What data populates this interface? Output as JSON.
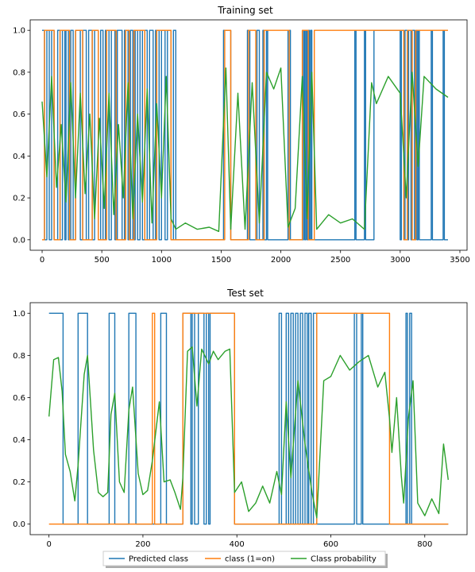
{
  "legend": {
    "entries": [
      {
        "label": "Predicted class",
        "color": "#1f77b4"
      },
      {
        "label": "class (1=on)",
        "color": "#ff7f0e"
      },
      {
        "label": "Class probability",
        "color": "#2ca02c"
      }
    ],
    "placement": "bottom-center",
    "shadow": true
  },
  "chart_data": [
    {
      "type": "line",
      "title": "Training set",
      "xlabel": "",
      "ylabel": "",
      "xlim": [
        -100,
        3560
      ],
      "ylim": [
        -0.05,
        1.05
      ],
      "xticks": [
        0,
        500,
        1000,
        1500,
        2000,
        2500,
        3000,
        3500
      ],
      "yticks": [
        0.0,
        0.2,
        0.4,
        0.6,
        0.8,
        1.0
      ],
      "grid": false,
      "series": [
        {
          "name": "Predicted class",
          "color": "#1f77b4",
          "kind": "step",
          "x": [
            0,
            20,
            40,
            60,
            80,
            100,
            130,
            150,
            170,
            190,
            200,
            220,
            240,
            260,
            280,
            320,
            340,
            370,
            390,
            420,
            440,
            470,
            490,
            510,
            530,
            560,
            580,
            610,
            630,
            670,
            690,
            720,
            740,
            760,
            780,
            800,
            820,
            840,
            860,
            880,
            900,
            930,
            950,
            980,
            1000,
            1030,
            1050,
            1080,
            1100,
            1120,
            1500,
            1520,
            1560,
            1580,
            1720,
            1740,
            1800,
            1820,
            1850,
            1860,
            1880,
            1890,
            2060,
            2080,
            2180,
            2190,
            2200,
            2210,
            2220,
            2230,
            2240,
            2250,
            2260,
            2270,
            2620,
            2630,
            2700,
            2710,
            2760,
            2780,
            3000,
            3010,
            3030,
            3040,
            3060,
            3070,
            3090,
            3100,
            3120,
            3130,
            3140,
            3150,
            3160,
            3170,
            3260,
            3270,
            3360,
            3370,
            3400
          ],
          "y": [
            1,
            0,
            1,
            0,
            1,
            0,
            1,
            0,
            1,
            0,
            1,
            0,
            1,
            0,
            1,
            0,
            1,
            0,
            1,
            0,
            1,
            0,
            1,
            0,
            1,
            0,
            1,
            0,
            1,
            0,
            1,
            0,
            1,
            0,
            1,
            0,
            1,
            0,
            1,
            0,
            1,
            0,
            1,
            0,
            1,
            0,
            1,
            0,
            1,
            0,
            0,
            1,
            1,
            0,
            1,
            0,
            1,
            0,
            1,
            0,
            1,
            0,
            1,
            0,
            0,
            1,
            0,
            1,
            0,
            1,
            0,
            1,
            0,
            0,
            1,
            0,
            1,
            0,
            0,
            1,
            0,
            1,
            0,
            1,
            0,
            1,
            0,
            1,
            0,
            1,
            0,
            1,
            0,
            0,
            1,
            0,
            1,
            0,
            0
          ]
        },
        {
          "name": "class (1=on)",
          "color": "#ff7f0e",
          "kind": "step",
          "x": [
            0,
            20,
            60,
            100,
            150,
            230,
            280,
            340,
            420,
            470,
            540,
            620,
            700,
            730,
            770,
            860,
            960,
            1000,
            1080,
            1500,
            1530,
            1580,
            1730,
            1790,
            1860,
            1880,
            2070,
            2180,
            2230,
            2280,
            2760,
            3030,
            3060,
            3100,
            3130,
            3400
          ],
          "y": [
            0,
            1,
            1,
            0,
            1,
            0,
            1,
            0,
            1,
            0,
            1,
            0,
            1,
            0,
            1,
            0,
            1,
            1,
            0,
            0,
            1,
            0,
            1,
            0,
            1,
            1,
            0,
            1,
            0,
            1,
            1,
            0,
            1,
            0,
            1,
            1
          ]
        },
        {
          "name": "Class probability",
          "color": "#2ca02c",
          "kind": "line",
          "x": [
            0,
            40,
            80,
            120,
            160,
            200,
            240,
            280,
            320,
            360,
            400,
            440,
            480,
            520,
            560,
            600,
            640,
            680,
            720,
            760,
            800,
            840,
            880,
            920,
            960,
            1000,
            1040,
            1080,
            1120,
            1200,
            1300,
            1400,
            1480,
            1540,
            1580,
            1640,
            1700,
            1760,
            1820,
            1880,
            1940,
            2000,
            2060,
            2120,
            2180,
            2220,
            2260,
            2300,
            2400,
            2500,
            2600,
            2700,
            2760,
            2800,
            2900,
            3000,
            3050,
            3100,
            3150,
            3200,
            3300,
            3400
          ],
          "y": [
            0.66,
            0.3,
            0.78,
            0.25,
            0.55,
            0.18,
            0.75,
            0.2,
            0.7,
            0.22,
            0.6,
            0.1,
            0.58,
            0.15,
            0.7,
            0.12,
            0.55,
            0.2,
            0.75,
            0.1,
            0.6,
            0.18,
            0.72,
            0.08,
            0.65,
            0.2,
            0.78,
            0.1,
            0.05,
            0.08,
            0.05,
            0.06,
            0.04,
            0.82,
            0.05,
            0.7,
            0.05,
            0.75,
            0.08,
            0.8,
            0.72,
            0.82,
            0.06,
            0.15,
            0.78,
            0.1,
            0.8,
            0.05,
            0.12,
            0.08,
            0.1,
            0.05,
            0.75,
            0.65,
            0.78,
            0.7,
            0.2,
            0.8,
            0.35,
            0.78,
            0.72,
            0.68
          ]
        }
      ]
    },
    {
      "type": "line",
      "title": "Test set",
      "xlabel": "",
      "ylabel": "",
      "xlim": [
        -40,
        890
      ],
      "ylim": [
        -0.05,
        1.05
      ],
      "xticks": [
        0,
        200,
        400,
        600,
        800
      ],
      "yticks": [
        0.0,
        0.2,
        0.4,
        0.6,
        0.8,
        1.0
      ],
      "grid": false,
      "series": [
        {
          "name": "Predicted class",
          "color": "#1f77b4",
          "kind": "step",
          "x": [
            0,
            30,
            62,
            82,
            128,
            140,
            170,
            185,
            238,
            250,
            285,
            302,
            305,
            310,
            318,
            330,
            335,
            340,
            343,
            350,
            395,
            490,
            495,
            505,
            510,
            515,
            520,
            525,
            530,
            535,
            540,
            545,
            550,
            553,
            558,
            563,
            570,
            650,
            655,
            665,
            668,
            760,
            763,
            768,
            772,
            778,
            850
          ],
          "y": [
            1,
            0,
            1,
            0,
            1,
            0,
            1,
            0,
            1,
            0,
            1,
            0,
            1,
            0,
            1,
            0,
            1,
            0,
            1,
            1,
            0,
            1,
            0,
            1,
            0,
            1,
            0,
            1,
            0,
            1,
            0,
            1,
            0,
            1,
            0,
            1,
            0,
            1,
            0,
            1,
            0,
            1,
            0,
            1,
            0,
            0,
            0
          ]
        },
        {
          "name": "class (1=on)",
          "color": "#ff7f0e",
          "kind": "step",
          "x": [
            0,
            220,
            225,
            285,
            395,
            565,
            570,
            725,
            850
          ],
          "y": [
            0,
            1,
            0,
            1,
            0,
            0,
            1,
            0,
            0
          ]
        },
        {
          "name": "Class probability",
          "color": "#2ca02c",
          "kind": "line",
          "x": [
            0,
            10,
            20,
            28,
            35,
            45,
            55,
            62,
            75,
            82,
            95,
            105,
            115,
            125,
            132,
            140,
            150,
            160,
            170,
            178,
            190,
            200,
            210,
            220,
            235,
            245,
            258,
            268,
            280,
            285,
            295,
            305,
            315,
            325,
            340,
            350,
            360,
            375,
            385,
            395,
            410,
            425,
            440,
            455,
            470,
            485,
            495,
            505,
            515,
            530,
            545,
            560,
            570,
            585,
            600,
            620,
            640,
            660,
            680,
            700,
            715,
            725,
            730,
            740,
            750,
            755,
            765,
            775,
            785,
            800,
            815,
            830,
            840,
            850
          ],
          "y": [
            0.51,
            0.78,
            0.79,
            0.63,
            0.33,
            0.25,
            0.11,
            0.28,
            0.71,
            0.8,
            0.35,
            0.15,
            0.13,
            0.15,
            0.52,
            0.62,
            0.2,
            0.15,
            0.54,
            0.65,
            0.24,
            0.14,
            0.16,
            0.3,
            0.58,
            0.2,
            0.21,
            0.15,
            0.07,
            0.22,
            0.82,
            0.84,
            0.56,
            0.83,
            0.76,
            0.82,
            0.78,
            0.82,
            0.83,
            0.15,
            0.2,
            0.06,
            0.1,
            0.18,
            0.1,
            0.25,
            0.14,
            0.58,
            0.22,
            0.68,
            0.38,
            0.15,
            0.03,
            0.68,
            0.7,
            0.8,
            0.73,
            0.77,
            0.8,
            0.65,
            0.72,
            0.5,
            0.34,
            0.6,
            0.23,
            0.1,
            0.5,
            0.68,
            0.1,
            0.04,
            0.12,
            0.05,
            0.38,
            0.21
          ]
        }
      ]
    }
  ]
}
